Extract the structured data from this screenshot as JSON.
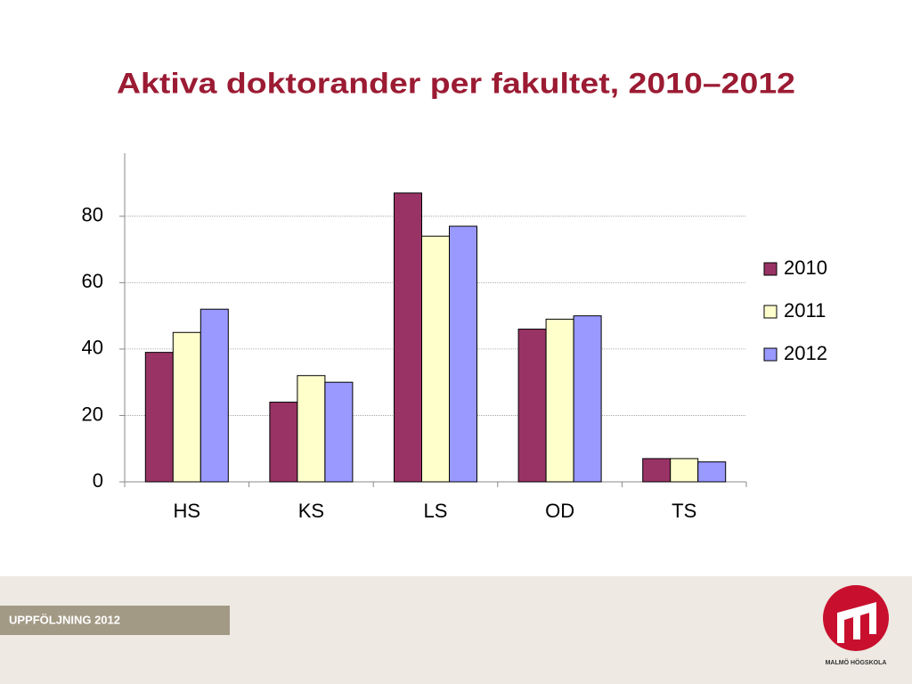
{
  "chart_data": {
    "type": "bar",
    "title": "Aktiva doktorander per fakultet, 2010–2012",
    "categories": [
      "HS",
      "KS",
      "LS",
      "OD",
      "TS"
    ],
    "series": [
      {
        "name": "2010",
        "color": "#993366",
        "values": [
          39,
          24,
          87,
          46,
          7
        ]
      },
      {
        "name": "2011",
        "color": "#ffffcc",
        "values": [
          45,
          32,
          74,
          49,
          7
        ]
      },
      {
        "name": "2012",
        "color": "#9999ff",
        "values": [
          52,
          30,
          77,
          50,
          6
        ]
      }
    ],
    "ylim": [
      0,
      99
    ],
    "yticks": [
      0,
      20,
      40,
      60,
      80
    ],
    "grid": true,
    "legend": "right"
  },
  "footer": {
    "label": "UPPFÖLJNING 2012",
    "logo_text": "MALMÖ HÖGSKOLA"
  }
}
